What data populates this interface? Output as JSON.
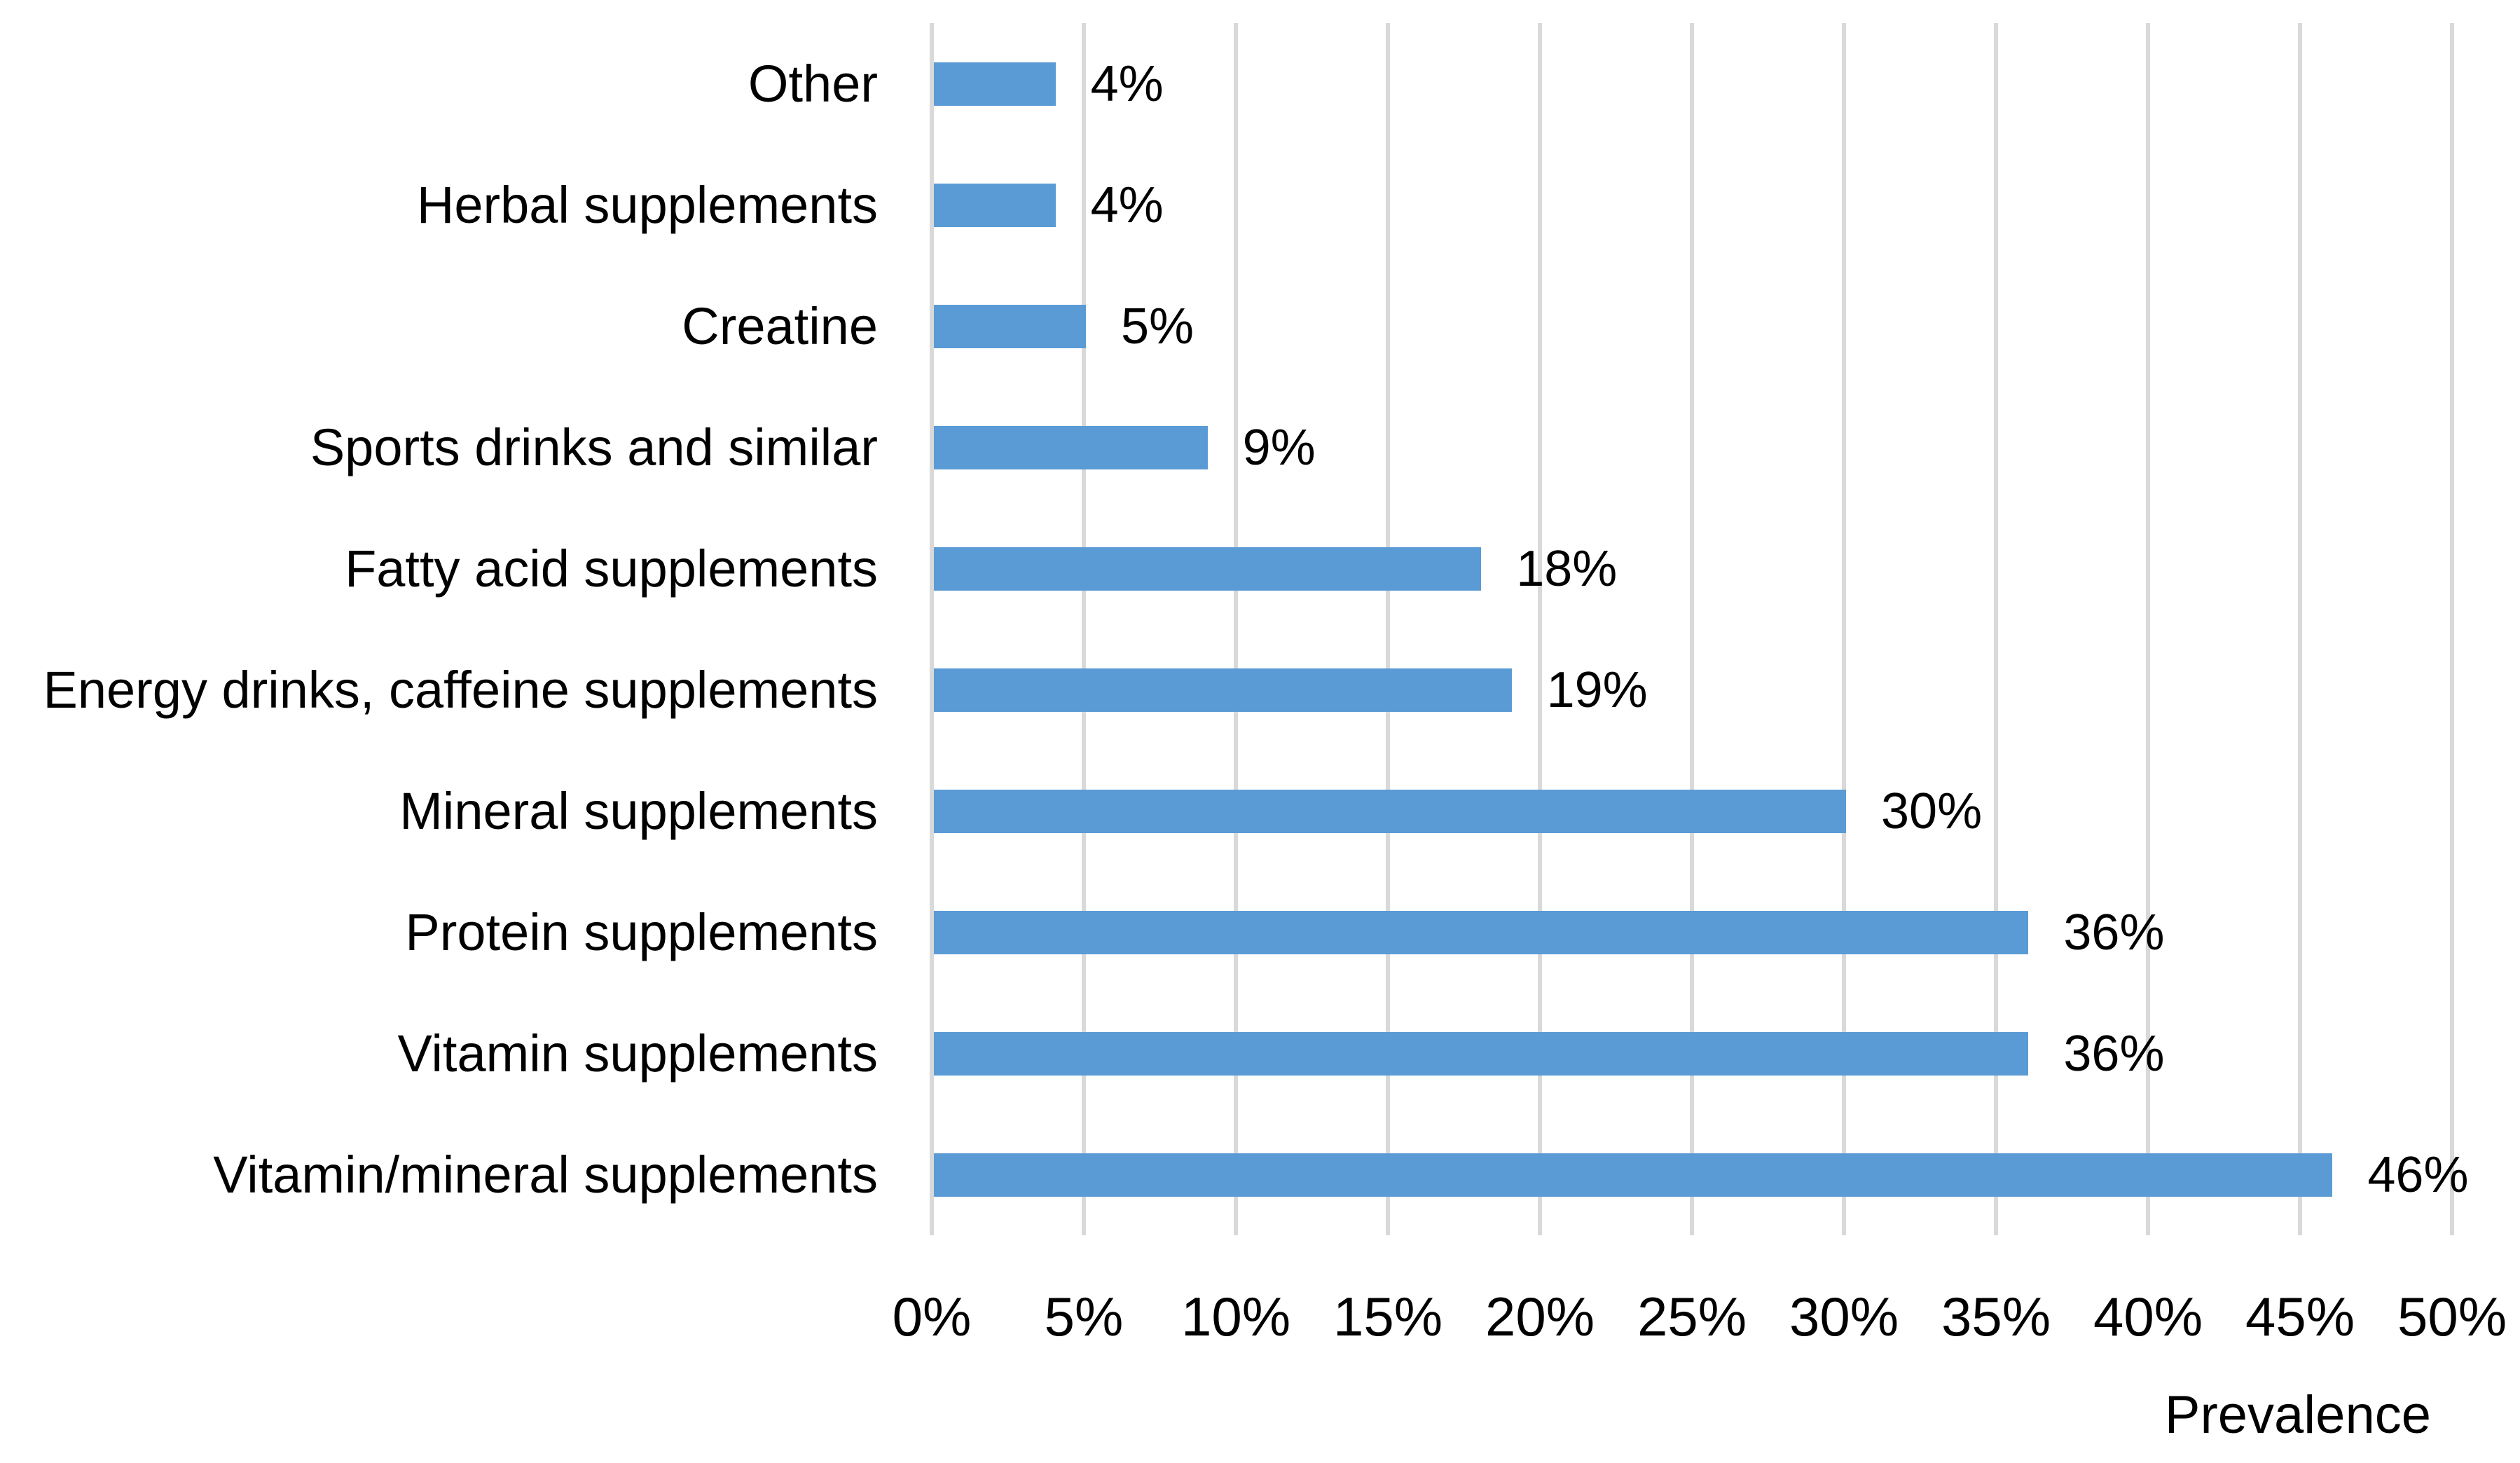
{
  "chart_data": {
    "type": "bar",
    "orientation": "horizontal",
    "title": "",
    "xlabel": "Prevalence",
    "ylabel": "",
    "categories": [
      "Other",
      "Herbal supplements",
      "Creatine",
      "Sports drinks and similar",
      "Fatty acid supplements",
      "Energy drinks, caffeine supplements",
      "Mineral supplements",
      "Protein supplements",
      "Vitamin supplements",
      "Vitamin/mineral supplements"
    ],
    "values": [
      4,
      4,
      5,
      9,
      18,
      19,
      30,
      36,
      36,
      46
    ],
    "value_labels": [
      "4%",
      "4%",
      "5%",
      "9%",
      "18%",
      "19%",
      "30%",
      "36%",
      "36%",
      "46%"
    ],
    "x_ticks": [
      "0%",
      "5%",
      "10%",
      "15%",
      "20%",
      "25%",
      "30%",
      "35%",
      "40%",
      "45%",
      "50%"
    ],
    "xlim": [
      0,
      50
    ],
    "grid": "vertical",
    "legend": "none",
    "bar_color": "#5B9BD5",
    "gridline_color": "#D9D9D9",
    "text_color": "#000000",
    "background": "#FFFFFF"
  }
}
